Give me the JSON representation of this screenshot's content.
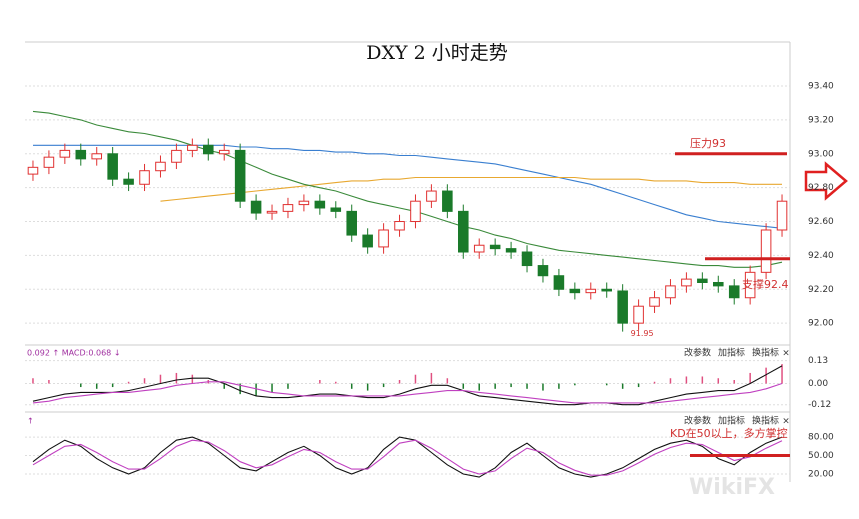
{
  "chart_data": [
    {
      "type": "candlestick",
      "title": "DXY 2 小时走势",
      "up_color": "#e03030",
      "down_color": "#1a7a2a",
      "open": [
        92.88,
        92.92,
        92.98,
        93.02,
        92.97,
        93.0,
        92.85,
        92.82,
        92.9,
        92.95,
        93.02,
        93.05,
        93.0,
        93.02,
        92.72,
        92.65,
        92.66,
        92.7,
        92.72,
        92.68,
        92.66,
        92.52,
        92.45,
        92.55,
        92.6,
        92.72,
        92.78,
        92.66,
        92.42,
        92.46,
        92.44,
        92.42,
        92.34,
        92.28,
        92.2,
        92.18,
        92.2,
        92.19,
        92.0,
        92.1,
        92.15,
        92.22,
        92.26,
        92.24,
        92.22,
        92.15,
        92.3,
        92.55
      ],
      "high": [
        92.96,
        93.02,
        93.06,
        93.06,
        93.04,
        93.04,
        92.89,
        92.94,
        92.99,
        93.06,
        93.09,
        93.09,
        93.06,
        93.06,
        92.76,
        92.7,
        92.74,
        92.76,
        92.76,
        92.72,
        92.7,
        92.56,
        92.59,
        92.64,
        92.76,
        92.82,
        92.82,
        92.7,
        92.5,
        92.5,
        92.48,
        92.46,
        92.38,
        92.32,
        92.24,
        92.24,
        92.24,
        92.23,
        92.14,
        92.19,
        92.26,
        92.3,
        92.3,
        92.28,
        92.26,
        92.34,
        92.59,
        92.76
      ],
      "low": [
        92.84,
        92.88,
        92.94,
        92.93,
        92.93,
        92.81,
        92.78,
        92.78,
        92.86,
        92.91,
        92.98,
        92.96,
        92.96,
        92.68,
        92.61,
        92.61,
        92.62,
        92.66,
        92.64,
        92.62,
        92.48,
        92.41,
        92.41,
        92.51,
        92.56,
        92.68,
        92.62,
        92.38,
        92.38,
        92.4,
        92.38,
        92.3,
        92.24,
        92.16,
        92.14,
        92.14,
        92.15,
        91.95,
        91.96,
        92.06,
        92.11,
        92.18,
        92.2,
        92.18,
        92.11,
        92.11,
        92.26,
        92.51
      ],
      "close": [
        92.92,
        92.98,
        93.02,
        92.97,
        93.0,
        92.85,
        92.82,
        92.9,
        92.95,
        93.02,
        93.05,
        93.0,
        93.02,
        92.72,
        92.65,
        92.66,
        92.7,
        92.72,
        92.68,
        92.66,
        92.52,
        92.45,
        92.55,
        92.6,
        92.72,
        92.78,
        92.66,
        92.42,
        92.46,
        92.44,
        92.42,
        92.34,
        92.28,
        92.2,
        92.18,
        92.2,
        92.19,
        92.0,
        92.1,
        92.15,
        92.22,
        92.26,
        92.24,
        92.22,
        92.15,
        92.3,
        92.55,
        92.72
      ],
      "series": [
        {
          "color": "#3a7fd0",
          "values": [
            93.05,
            93.05,
            93.05,
            93.05,
            93.05,
            93.05,
            93.05,
            93.05,
            93.05,
            93.05,
            93.05,
            93.05,
            93.05,
            93.04,
            93.04,
            93.03,
            93.03,
            93.02,
            93.02,
            93.01,
            93.01,
            93.0,
            93.0,
            92.99,
            92.99,
            92.98,
            92.97,
            92.96,
            92.95,
            92.94,
            92.92,
            92.9,
            92.88,
            92.86,
            92.84,
            92.82,
            92.79,
            92.76,
            92.73,
            92.7,
            92.67,
            92.64,
            92.62,
            92.6,
            92.59,
            92.58,
            92.57,
            92.56
          ]
        },
        {
          "color": "#e8a830",
          "values": [
            null,
            null,
            null,
            null,
            null,
            null,
            null,
            null,
            92.72,
            92.73,
            92.74,
            92.75,
            92.76,
            92.77,
            92.78,
            92.79,
            92.8,
            92.81,
            92.82,
            92.83,
            92.84,
            92.84,
            92.85,
            92.85,
            92.86,
            92.86,
            92.86,
            92.86,
            92.86,
            92.86,
            92.86,
            92.86,
            92.86,
            92.86,
            92.86,
            92.85,
            92.85,
            92.85,
            92.85,
            92.84,
            92.84,
            92.84,
            92.83,
            92.83,
            92.83,
            92.82,
            92.82,
            92.82
          ]
        },
        {
          "color": "#3a8a3a",
          "values": [
            93.25,
            93.24,
            93.22,
            93.2,
            93.17,
            93.15,
            93.13,
            93.12,
            93.1,
            93.08,
            93.05,
            93.02,
            93.0,
            92.96,
            92.92,
            92.88,
            92.85,
            92.82,
            92.8,
            92.78,
            92.75,
            92.72,
            92.7,
            92.68,
            92.66,
            92.63,
            92.6,
            92.57,
            92.55,
            92.52,
            92.5,
            92.47,
            92.45,
            92.43,
            92.42,
            92.41,
            92.4,
            92.39,
            92.38,
            92.37,
            92.36,
            92.35,
            92.34,
            92.34,
            92.33,
            92.33,
            92.34,
            92.36
          ]
        }
      ],
      "ylim": [
        91.93,
        93.66
      ],
      "yticks": [
        {
          "value": 92,
          "label": "92.00"
        },
        {
          "value": 92.2,
          "label": "92.20"
        },
        {
          "value": 92.4,
          "label": "92.40"
        },
        {
          "value": 92.6,
          "label": "92.60"
        },
        {
          "value": 92.8,
          "label": "92.80"
        },
        {
          "value": 93,
          "label": "93.00"
        },
        {
          "value": 93.2,
          "label": "93.20"
        },
        {
          "value": 93.4,
          "label": "93.40"
        }
      ],
      "grid": true,
      "low_label": "91.95",
      "annotations": [
        {
          "text": "压力93",
          "value": 93
        },
        {
          "text": "支撑92.4",
          "value": 92.38
        }
      ]
    },
    {
      "type": "macd",
      "header": "0.092 ↑ MACD:0.068 ↓",
      "up_color": "#e05080",
      "down_color": "#1a7a2a",
      "values": [
        0.03,
        0.02,
        0.0,
        -0.02,
        -0.03,
        -0.02,
        0.01,
        0.03,
        0.05,
        0.06,
        0.05,
        0.02,
        -0.03,
        -0.06,
        -0.07,
        -0.05,
        -0.03,
        0.0,
        0.02,
        0.01,
        -0.03,
        -0.04,
        -0.02,
        0.02,
        0.05,
        0.06,
        0.03,
        -0.03,
        -0.04,
        -0.03,
        -0.02,
        -0.03,
        -0.04,
        -0.03,
        -0.01,
        0.0,
        -0.01,
        -0.03,
        -0.02,
        0.01,
        0.03,
        0.04,
        0.04,
        0.03,
        0.02,
        0.06,
        0.09,
        0.11
      ],
      "series": [
        {
          "color": "#111111",
          "values": [
            -0.1,
            -0.08,
            -0.06,
            -0.05,
            -0.05,
            -0.05,
            -0.04,
            -0.02,
            0.0,
            0.02,
            0.03,
            0.03,
            0.0,
            -0.04,
            -0.07,
            -0.08,
            -0.08,
            -0.07,
            -0.06,
            -0.06,
            -0.07,
            -0.08,
            -0.08,
            -0.06,
            -0.03,
            -0.01,
            -0.01,
            -0.04,
            -0.07,
            -0.08,
            -0.09,
            -0.1,
            -0.11,
            -0.12,
            -0.12,
            -0.11,
            -0.11,
            -0.12,
            -0.12,
            -0.1,
            -0.08,
            -0.06,
            -0.05,
            -0.04,
            -0.04,
            0.0,
            0.05,
            0.1
          ]
        },
        {
          "color": "#c040c0",
          "values": [
            -0.11,
            -0.1,
            -0.08,
            -0.07,
            -0.06,
            -0.05,
            -0.05,
            -0.04,
            -0.03,
            -0.01,
            0.0,
            0.01,
            0.01,
            -0.01,
            -0.03,
            -0.05,
            -0.06,
            -0.07,
            -0.07,
            -0.07,
            -0.07,
            -0.07,
            -0.07,
            -0.07,
            -0.06,
            -0.05,
            -0.04,
            -0.04,
            -0.05,
            -0.06,
            -0.07,
            -0.08,
            -0.09,
            -0.1,
            -0.11,
            -0.11,
            -0.11,
            -0.11,
            -0.11,
            -0.11,
            -0.1,
            -0.09,
            -0.08,
            -0.07,
            -0.06,
            -0.05,
            -0.03,
            0.0
          ]
        }
      ],
      "ylim": [
        -0.15,
        0.19
      ],
      "yticks": [
        0.13,
        {
          "value": 0,
          "label": "0.00"
        },
        -0.12
      ]
    },
    {
      "type": "kd",
      "header": "↑",
      "series": [
        {
          "color": "#111111",
          "values": [
            40,
            60,
            75,
            65,
            45,
            30,
            20,
            30,
            55,
            75,
            80,
            70,
            50,
            30,
            25,
            40,
            55,
            65,
            50,
            30,
            20,
            30,
            60,
            80,
            75,
            55,
            35,
            20,
            15,
            30,
            55,
            70,
            50,
            30,
            20,
            15,
            20,
            30,
            45,
            60,
            70,
            75,
            65,
            45,
            35,
            55,
            70,
            80
          ]
        },
        {
          "color": "#c040c0",
          "values": [
            35,
            50,
            65,
            68,
            55,
            40,
            28,
            28,
            45,
            65,
            75,
            72,
            58,
            40,
            30,
            35,
            48,
            60,
            55,
            40,
            28,
            28,
            48,
            70,
            75,
            62,
            45,
            28,
            20,
            25,
            45,
            62,
            55,
            38,
            26,
            18,
            18,
            25,
            38,
            52,
            63,
            70,
            68,
            55,
            42,
            48,
            62,
            74
          ]
        }
      ],
      "ylim": [
        7,
        111
      ],
      "yticks": [
        {
          "value": 80,
          "label": "80.00"
        },
        {
          "value": 50,
          "label": "50.00"
        },
        {
          "value": 20,
          "label": "20.00"
        }
      ],
      "annotations": [
        {
          "text": "KD在50以上，多方掌控",
          "value": 50
        }
      ]
    }
  ],
  "toolbar": [
    "改参数",
    "加指标",
    "换指标"
  ],
  "close_button": "×",
  "watermark": "WikiFX"
}
